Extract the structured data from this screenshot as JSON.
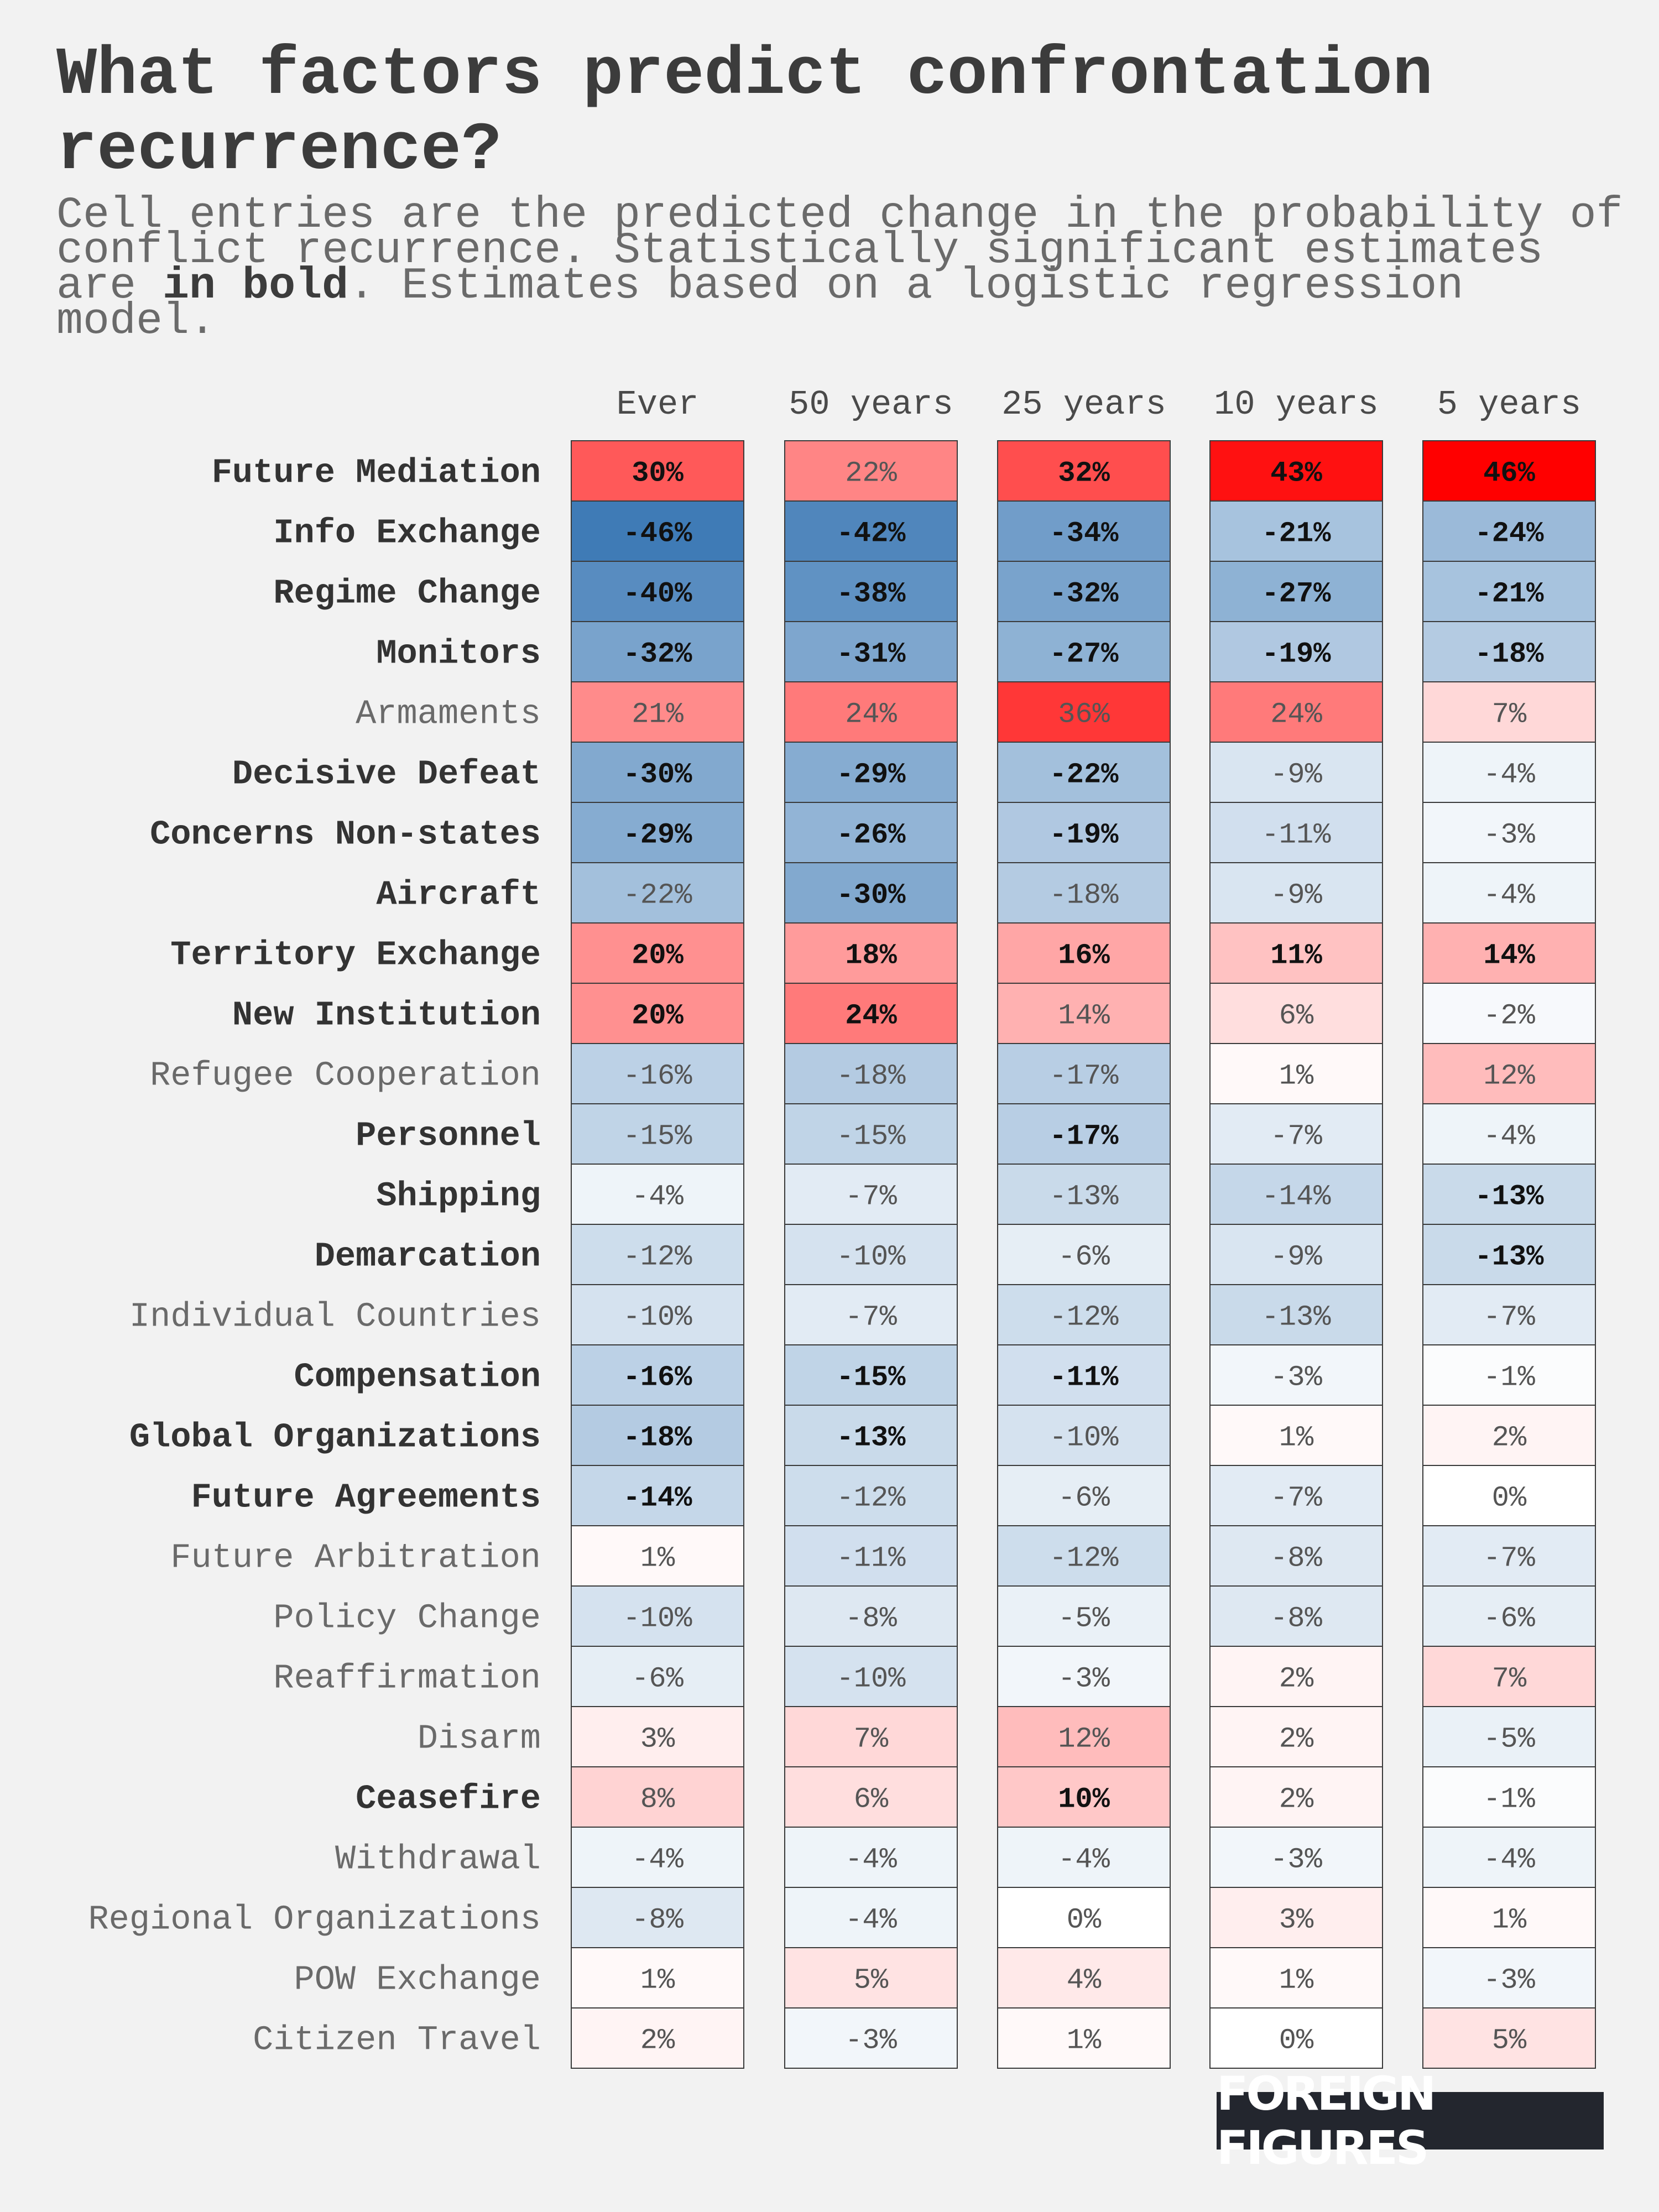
{
  "title": "What factors predict confrontation recurrence?",
  "subtitle": {
    "before_bold": "Cell entries are the predicted change in the probability of conflict recurrence. Statistically significant estimates are ",
    "bold": "in bold",
    "after_bold": ". Estimates based on a logistic regression model."
  },
  "logo_text": "FOREIGN FIGURES",
  "chart_data": {
    "type": "heatmap",
    "columns": [
      "Ever",
      "50 years",
      "25 years",
      "10 years",
      "5 years"
    ],
    "value_format": "percent",
    "color_scale": {
      "negative": "#3f7bb6",
      "zero": "#ffffff",
      "positive": "#ff0000",
      "max_abs": 46
    },
    "rows": [
      {
        "label": "Future Mediation",
        "label_bold": true,
        "values": [
          30,
          22,
          32,
          43,
          46
        ],
        "bold": [
          true,
          false,
          true,
          true,
          true
        ]
      },
      {
        "label": "Info Exchange",
        "label_bold": true,
        "values": [
          -46,
          -42,
          -34,
          -21,
          -24
        ],
        "bold": [
          true,
          true,
          true,
          true,
          true
        ]
      },
      {
        "label": "Regime Change",
        "label_bold": true,
        "values": [
          -40,
          -38,
          -32,
          -27,
          -21
        ],
        "bold": [
          true,
          true,
          true,
          true,
          true
        ]
      },
      {
        "label": "Monitors",
        "label_bold": true,
        "values": [
          -32,
          -31,
          -27,
          -19,
          -18
        ],
        "bold": [
          true,
          true,
          true,
          true,
          true
        ]
      },
      {
        "label": "Armaments",
        "label_bold": false,
        "values": [
          21,
          24,
          36,
          24,
          7
        ],
        "bold": [
          false,
          false,
          false,
          false,
          false
        ]
      },
      {
        "label": "Decisive Defeat",
        "label_bold": true,
        "values": [
          -30,
          -29,
          -22,
          -9,
          -4
        ],
        "bold": [
          true,
          true,
          true,
          false,
          false
        ]
      },
      {
        "label": "Concerns Non-states",
        "label_bold": true,
        "values": [
          -29,
          -26,
          -19,
          -11,
          -3
        ],
        "bold": [
          true,
          true,
          true,
          false,
          false
        ]
      },
      {
        "label": "Aircraft",
        "label_bold": true,
        "values": [
          -22,
          -30,
          -18,
          -9,
          -4
        ],
        "bold": [
          false,
          true,
          false,
          false,
          false
        ]
      },
      {
        "label": "Territory Exchange",
        "label_bold": true,
        "values": [
          20,
          18,
          16,
          11,
          14
        ],
        "bold": [
          true,
          true,
          true,
          true,
          true
        ]
      },
      {
        "label": "New Institution",
        "label_bold": true,
        "values": [
          20,
          24,
          14,
          6,
          -2
        ],
        "bold": [
          true,
          true,
          false,
          false,
          false
        ]
      },
      {
        "label": "Refugee Cooperation",
        "label_bold": false,
        "values": [
          -16,
          -18,
          -17,
          1,
          12
        ],
        "bold": [
          false,
          false,
          false,
          false,
          false
        ]
      },
      {
        "label": "Personnel",
        "label_bold": true,
        "values": [
          -15,
          -15,
          -17,
          -7,
          -4
        ],
        "bold": [
          false,
          false,
          true,
          false,
          false
        ]
      },
      {
        "label": "Shipping",
        "label_bold": true,
        "values": [
          -4,
          -7,
          -13,
          -14,
          -13
        ],
        "bold": [
          false,
          false,
          false,
          false,
          true
        ]
      },
      {
        "label": "Demarcation",
        "label_bold": true,
        "values": [
          -12,
          -10,
          -6,
          -9,
          -13
        ],
        "bold": [
          false,
          false,
          false,
          false,
          true
        ]
      },
      {
        "label": "Individual Countries",
        "label_bold": false,
        "values": [
          -10,
          -7,
          -12,
          -13,
          -7
        ],
        "bold": [
          false,
          false,
          false,
          false,
          false
        ]
      },
      {
        "label": "Compensation",
        "label_bold": true,
        "values": [
          -16,
          -15,
          -11,
          -3,
          -1
        ],
        "bold": [
          true,
          true,
          true,
          false,
          false
        ]
      },
      {
        "label": "Global Organizations",
        "label_bold": true,
        "values": [
          -18,
          -13,
          -10,
          1,
          2
        ],
        "bold": [
          true,
          true,
          false,
          false,
          false
        ]
      },
      {
        "label": "Future Agreements",
        "label_bold": true,
        "values": [
          -14,
          -12,
          -6,
          -7,
          0
        ],
        "bold": [
          true,
          false,
          false,
          false,
          false
        ]
      },
      {
        "label": "Future Arbitration",
        "label_bold": false,
        "values": [
          1,
          -11,
          -12,
          -8,
          -7
        ],
        "bold": [
          false,
          false,
          false,
          false,
          false
        ]
      },
      {
        "label": "Policy Change",
        "label_bold": false,
        "values": [
          -10,
          -8,
          -5,
          -8,
          -6
        ],
        "bold": [
          false,
          false,
          false,
          false,
          false
        ]
      },
      {
        "label": "Reaffirmation",
        "label_bold": false,
        "values": [
          -6,
          -10,
          -3,
          2,
          7
        ],
        "bold": [
          false,
          false,
          false,
          false,
          false
        ]
      },
      {
        "label": "Disarm",
        "label_bold": false,
        "values": [
          3,
          7,
          12,
          2,
          -5
        ],
        "bold": [
          false,
          false,
          false,
          false,
          false
        ]
      },
      {
        "label": "Ceasefire",
        "label_bold": true,
        "values": [
          8,
          6,
          10,
          2,
          -1
        ],
        "bold": [
          false,
          false,
          true,
          false,
          false
        ]
      },
      {
        "label": "Withdrawal",
        "label_bold": false,
        "values": [
          -4,
          -4,
          -4,
          -3,
          -4
        ],
        "bold": [
          false,
          false,
          false,
          false,
          false
        ]
      },
      {
        "label": "Regional Organizations",
        "label_bold": false,
        "values": [
          -8,
          -4,
          0,
          3,
          1
        ],
        "bold": [
          false,
          false,
          false,
          false,
          false
        ]
      },
      {
        "label": "POW Exchange",
        "label_bold": false,
        "values": [
          1,
          5,
          4,
          1,
          -3
        ],
        "bold": [
          false,
          false,
          false,
          false,
          false
        ]
      },
      {
        "label": "Citizen Travel",
        "label_bold": false,
        "values": [
          2,
          -3,
          1,
          0,
          5
        ],
        "bold": [
          false,
          false,
          false,
          false,
          false
        ]
      }
    ]
  }
}
